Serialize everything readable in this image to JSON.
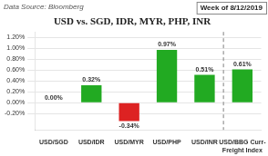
{
  "chart_data": {
    "type": "bar",
    "title": "USD vs. SGD, IDR, MYR, PHP, INR",
    "annotations": [
      "Data Source: Bloomberg",
      "Week of 8/12/2019"
    ],
    "categories": [
      "USD/SGD",
      "USD/IDR",
      "USD/MYR",
      "USD/PHP",
      "USD/INR",
      "USD/BBG Curr-\nFreight Index"
    ],
    "values": [
      0.0,
      0.0032,
      -0.0034,
      0.0097,
      0.0051,
      0.0061
    ],
    "value_labels": [
      "0.00%",
      "0.32%",
      "-0.34%",
      "0.97%",
      "0.51%",
      "0.61%"
    ],
    "data_labels": true,
    "colors": [
      "#22aa22",
      "#22aa22",
      "#dd2222",
      "#22aa22",
      "#22aa22",
      "#22aa22"
    ],
    "ylim": [
      -0.005,
      0.013
    ],
    "yticks": [
      {
        "value": -0.002,
        "label": "-0.20%"
      },
      {
        "value": 0.0,
        "label": "0.00%"
      },
      {
        "value": 0.002,
        "label": "0.20%"
      },
      {
        "value": 0.004,
        "label": "0.40%"
      },
      {
        "value": 0.006,
        "label": "0.60%"
      },
      {
        "value": 0.008,
        "label": "0.80%"
      },
      {
        "value": 0.01,
        "label": "1.00%"
      },
      {
        "value": 0.012,
        "label": "1.20%"
      }
    ],
    "grid": true
  }
}
